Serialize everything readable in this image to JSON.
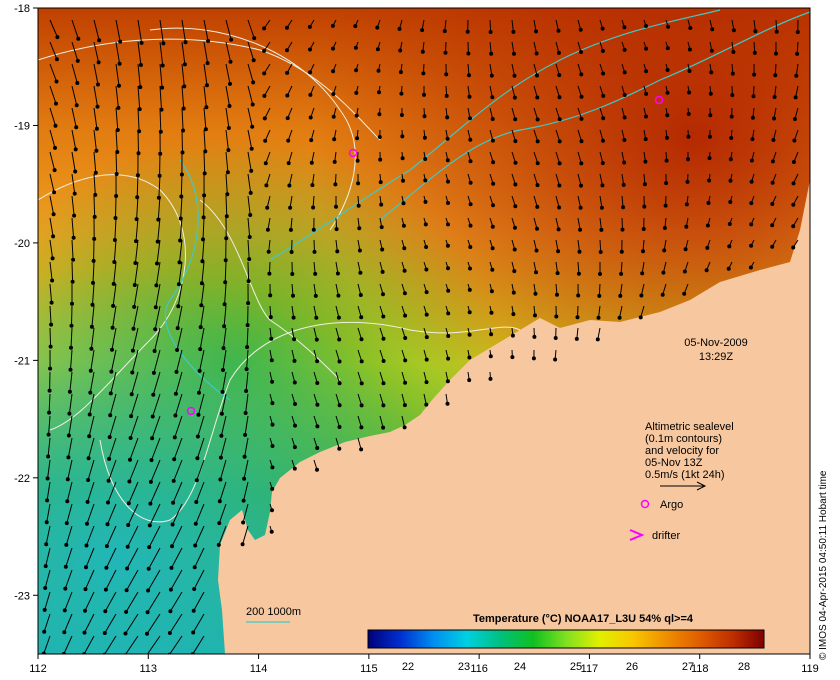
{
  "map": {
    "lon_range": [
      112,
      119
    ],
    "lat_range": [
      -23.5,
      -18
    ],
    "x_ticks": [
      "112",
      "113",
      "114",
      "115",
      "116",
      "117",
      "118",
      "119"
    ],
    "y_ticks": [
      "-18",
      "-19",
      "-20",
      "-21",
      "-22",
      "-23"
    ],
    "land_color": "#f7c8a0"
  },
  "timestamp": {
    "date": "05-Nov-2009",
    "time": "13:29Z"
  },
  "legend": {
    "sealevel_lines": [
      "Altimetric sealevel",
      "(0.1m contours)",
      "and velocity for",
      "05-Nov 13Z",
      "0.5m/s (1kt 24h)"
    ],
    "argo_label": "Argo",
    "drifter_label": "drifter",
    "isobath_label": "200  1000m",
    "argo_color": "#ff00ff",
    "drifter_color": "#ff00ff",
    "isobath_color": "#40c8c8"
  },
  "colorbar": {
    "title": "Temperature (°C) NOAA17_L3U 54% ql>=4",
    "ticks": [
      "22",
      "23",
      "24",
      "25",
      "26",
      "27",
      "28"
    ],
    "colors": [
      "#00007a",
      "#0030d0",
      "#0090f0",
      "#00d0e0",
      "#00c080",
      "#10c020",
      "#80e020",
      "#e0f000",
      "#f8c800",
      "#f09000",
      "#e06000",
      "#c03000",
      "#800000"
    ]
  },
  "credit": "© IMOS 04-Apr-2015 04:50:11 Hobart time"
}
